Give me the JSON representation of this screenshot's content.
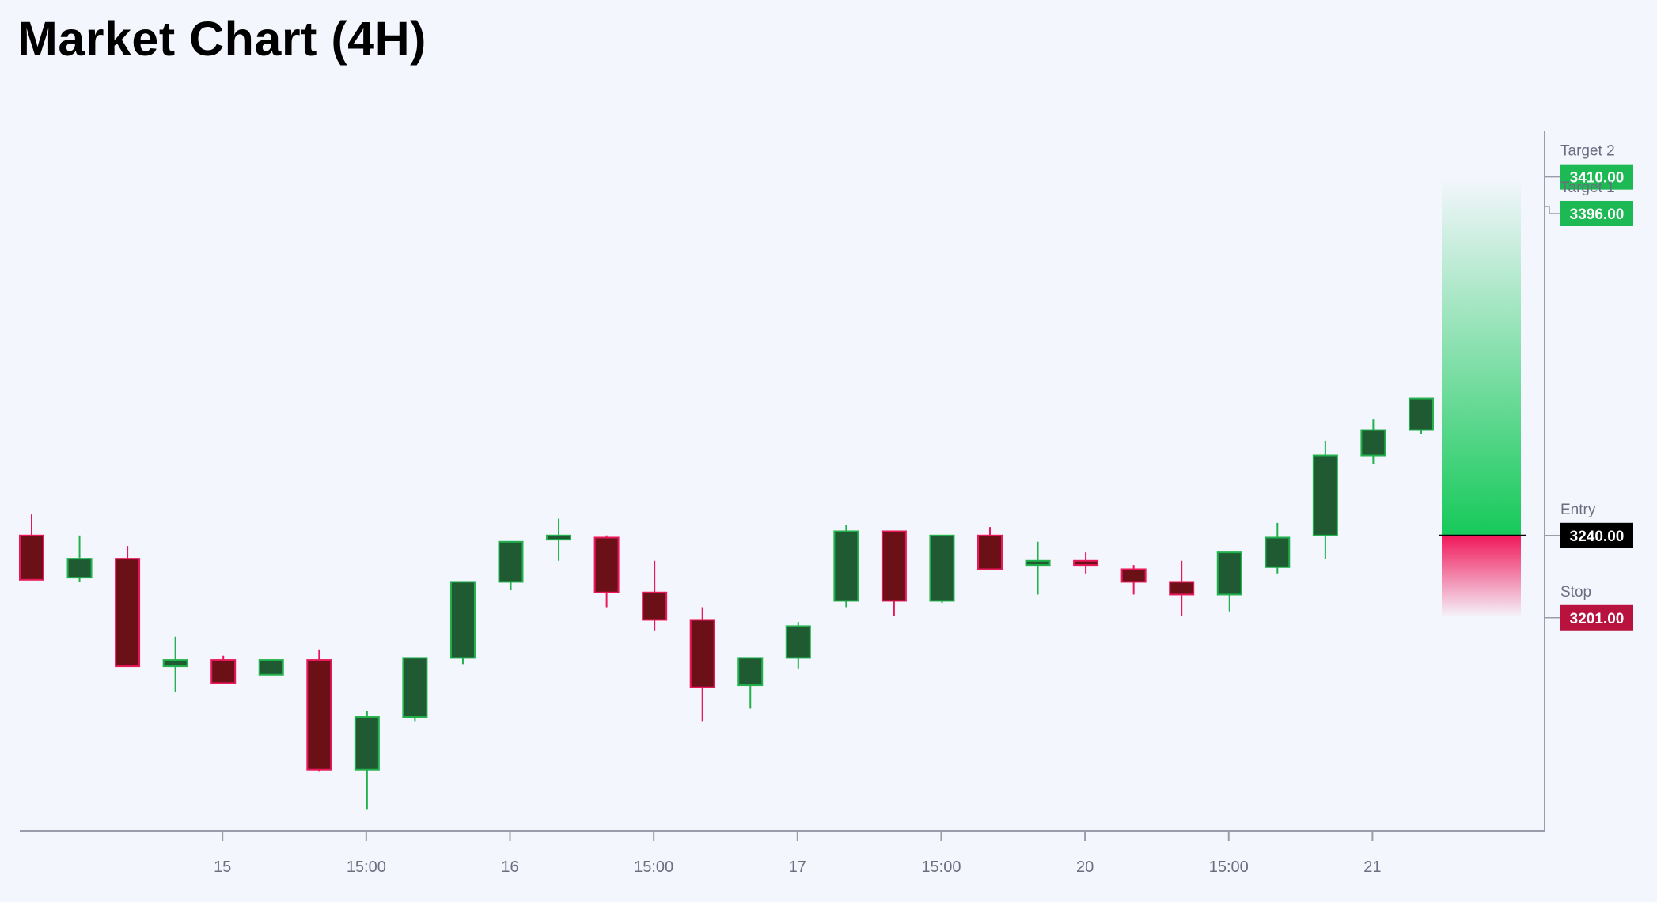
{
  "title": "Market Chart (4H)",
  "colors": {
    "background": "#f4f6fd",
    "up_body": "#1f5a32",
    "up_border": "#22b14c",
    "down_body": "#6b1016",
    "down_border": "#e8195a",
    "target_tag": "#1db954",
    "entry_tag": "#000000",
    "stop_tag": "#b8133f",
    "axis": "#9a9cab"
  },
  "chart_data": {
    "type": "candlestick",
    "title": "Market Chart (4H)",
    "x_ticks": [
      "15",
      "15:00",
      "16",
      "15:00",
      "17",
      "15:00",
      "20",
      "15:00",
      "21"
    ],
    "x_tick_positions": [
      4,
      7,
      10,
      13,
      16,
      19,
      22,
      25,
      28
    ],
    "ylim": [
      3100,
      3432
    ],
    "candles": [
      {
        "o": 3240,
        "h": 3250,
        "l": 3219,
        "c": 3219
      },
      {
        "o": 3220,
        "h": 3240,
        "l": 3218,
        "c": 3229
      },
      {
        "o": 3229,
        "h": 3235,
        "l": 3178,
        "c": 3178
      },
      {
        "o": 3178,
        "h": 3192,
        "l": 3166,
        "c": 3181
      },
      {
        "o": 3181,
        "h": 3183,
        "l": 3172,
        "c": 3170
      },
      {
        "o": 3174,
        "h": 3181,
        "l": 3174,
        "c": 3181
      },
      {
        "o": 3181,
        "h": 3186,
        "l": 3128,
        "c": 3129
      },
      {
        "o": 3129,
        "h": 3157,
        "l": 3110,
        "c": 3154
      },
      {
        "o": 3154,
        "h": 3182,
        "l": 3152,
        "c": 3182
      },
      {
        "o": 3182,
        "h": 3218,
        "l": 3179,
        "c": 3218
      },
      {
        "o": 3218,
        "h": 3237,
        "l": 3214,
        "c": 3237
      },
      {
        "o": 3238,
        "h": 3248,
        "l": 3228,
        "c": 3240
      },
      {
        "o": 3239,
        "h": 3240,
        "l": 3206,
        "c": 3213
      },
      {
        "o": 3213,
        "h": 3228,
        "l": 3195,
        "c": 3200
      },
      {
        "o": 3200,
        "h": 3206,
        "l": 3152,
        "c": 3168
      },
      {
        "o": 3169,
        "h": 3181,
        "l": 3158,
        "c": 3182
      },
      {
        "o": 3182,
        "h": 3199,
        "l": 3177,
        "c": 3197
      },
      {
        "o": 3209,
        "h": 3245,
        "l": 3206,
        "c": 3242
      },
      {
        "o": 3242,
        "h": 3242,
        "l": 3202,
        "c": 3209
      },
      {
        "o": 3209,
        "h": 3240,
        "l": 3208,
        "c": 3240
      },
      {
        "o": 3240,
        "h": 3244,
        "l": 3224,
        "c": 3224
      },
      {
        "o": 3226,
        "h": 3237,
        "l": 3212,
        "c": 3228
      },
      {
        "o": 3228,
        "h": 3232,
        "l": 3222,
        "c": 3226
      },
      {
        "o": 3224,
        "h": 3226,
        "l": 3212,
        "c": 3218
      },
      {
        "o": 3218,
        "h": 3228,
        "l": 3202,
        "c": 3212
      },
      {
        "o": 3212,
        "h": 3232,
        "l": 3204,
        "c": 3232
      },
      {
        "o": 3225,
        "h": 3246,
        "l": 3222,
        "c": 3239
      },
      {
        "o": 3240,
        "h": 3285,
        "l": 3229,
        "c": 3278
      },
      {
        "o": 3278,
        "h": 3295,
        "l": 3274,
        "c": 3290
      },
      {
        "o": 3290,
        "h": 3305,
        "l": 3288,
        "c": 3305
      }
    ],
    "levels": [
      {
        "name": "Target 2",
        "value": 3410,
        "label": "3410.00",
        "kind": "target"
      },
      {
        "name": "Target 1",
        "value": 3396,
        "label": "3396.00",
        "kind": "target"
      },
      {
        "name": "Entry",
        "value": 3240,
        "label": "3240.00",
        "kind": "entry"
      },
      {
        "name": "Stop",
        "value": 3201,
        "label": "3201.00",
        "kind": "stop"
      }
    ],
    "profit_zone": {
      "from": 3240,
      "to": 3410
    },
    "loss_zone": {
      "from": 3201,
      "to": 3240
    },
    "grid": false
  }
}
